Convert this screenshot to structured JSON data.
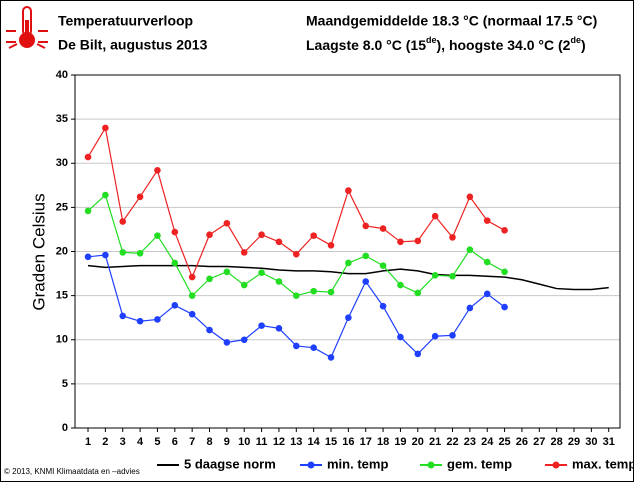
{
  "chart_data": {
    "type": "line",
    "title": "Temperatuurverloop",
    "subtitle": "De Bilt, augustus 2013",
    "summary_line1": "Maandgemiddelde 18.3 °C (normaal 17.5 °C)",
    "summary_line2": [
      "Laagste 8.0 °C (15",
      "de",
      "), hoogste 34.0 °C (2",
      "de",
      ")"
    ],
    "footer": "© 2013, KNMI Klimaatdata en –advies",
    "y_label": "Graden Celsius",
    "x": [
      1,
      2,
      3,
      4,
      5,
      6,
      7,
      8,
      9,
      10,
      11,
      12,
      13,
      14,
      15,
      16,
      17,
      18,
      19,
      20,
      21,
      22,
      23,
      24,
      25,
      26,
      27,
      28,
      29,
      30,
      31
    ],
    "xlim": [
      0.25,
      31.65
    ],
    "xticks": [
      1,
      2,
      3,
      4,
      5,
      6,
      7,
      8,
      9,
      10,
      11,
      12,
      13,
      14,
      15,
      16,
      17,
      18,
      19,
      20,
      21,
      22,
      23,
      24,
      25,
      26,
      27,
      28,
      29,
      30,
      31
    ],
    "ylim": [
      0,
      40
    ],
    "yticks": [
      0,
      5,
      10,
      15,
      20,
      25,
      30,
      35,
      40
    ],
    "grid": true,
    "legend": "bottom",
    "series": [
      {
        "name": "5 daagse norm",
        "color": "#000000",
        "marker": false,
        "values": [
          18.4,
          18.2,
          18.3,
          18.4,
          18.4,
          18.4,
          18.4,
          18.3,
          18.3,
          18.2,
          18.1,
          17.9,
          17.8,
          17.8,
          17.7,
          17.5,
          17.5,
          17.8,
          18.0,
          17.8,
          17.4,
          17.3,
          17.3,
          17.2,
          17.1,
          16.8,
          16.3,
          15.8,
          15.7,
          15.7,
          15.9
        ]
      },
      {
        "name": "min. temp",
        "color": "#1f3fff",
        "marker": true,
        "values": [
          19.4,
          19.6,
          12.7,
          12.1,
          12.3,
          13.9,
          12.9,
          11.1,
          9.7,
          10.0,
          11.6,
          11.3,
          9.3,
          9.1,
          8.0,
          12.5,
          16.6,
          13.8,
          10.3,
          8.4,
          10.4,
          10.5,
          13.6,
          15.2,
          13.7,
          null,
          null,
          null,
          null,
          null,
          null
        ]
      },
      {
        "name": "gem. temp",
        "color": "#22dd22",
        "marker": true,
        "values": [
          24.6,
          26.4,
          19.9,
          19.8,
          21.8,
          18.7,
          15.0,
          16.9,
          17.7,
          16.2,
          17.6,
          16.6,
          15.0,
          15.5,
          15.4,
          18.7,
          19.5,
          18.4,
          16.2,
          15.3,
          17.3,
          17.2,
          20.2,
          18.8,
          17.7,
          null,
          null,
          null,
          null,
          null,
          null
        ]
      },
      {
        "name": "max. temp",
        "color": "#ee2222",
        "marker": true,
        "values": [
          30.7,
          34.0,
          23.4,
          26.2,
          29.2,
          22.2,
          17.1,
          21.9,
          23.2,
          19.9,
          21.9,
          21.1,
          19.7,
          21.8,
          20.7,
          26.9,
          22.9,
          22.6,
          21.1,
          21.2,
          24.0,
          21.6,
          26.2,
          23.5,
          22.4,
          null,
          null,
          null,
          null,
          null,
          null
        ]
      }
    ]
  }
}
